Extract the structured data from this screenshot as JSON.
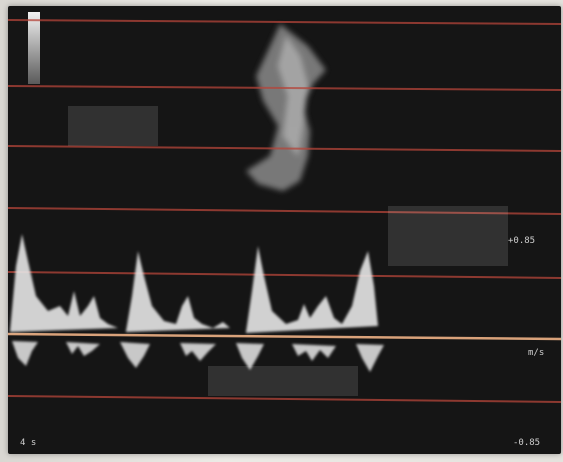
{
  "image": {
    "subject": "spectral-doppler-ultrasound-display",
    "colors": {
      "screen_background": "#151515",
      "gridline": "#b5453a",
      "baseline": "#d9a27a",
      "echo": "#e6e6e6"
    }
  },
  "labels": {
    "top_right": "",
    "scale_upper": "+0.85",
    "scale_baseline": "m/s",
    "scale_lower": "-0.85",
    "bottom_left": "4 s"
  }
}
